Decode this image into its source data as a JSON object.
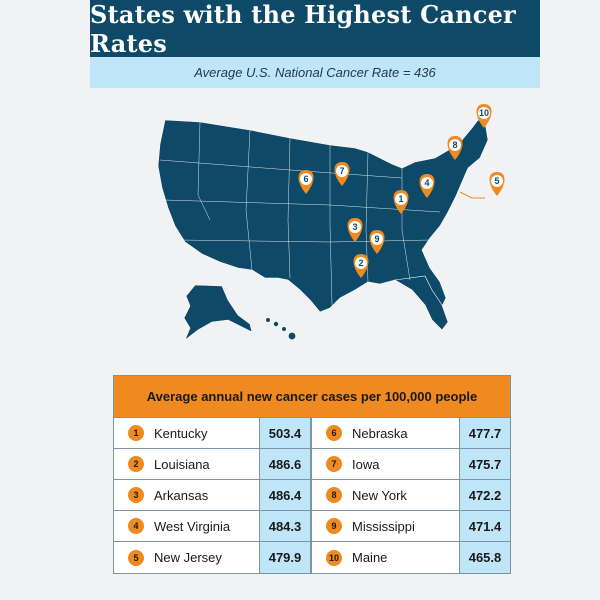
{
  "title": "States with the Highest Cancer Rates",
  "subtitle": "Average U.S. National Cancer Rate = 436",
  "table": {
    "header": "Average annual new cancer cases per 100,000 people",
    "left": [
      {
        "rank": "1",
        "state": "Kentucky",
        "value": "503.4"
      },
      {
        "rank": "2",
        "state": "Louisiana",
        "value": "486.6"
      },
      {
        "rank": "3",
        "state": "Arkansas",
        "value": "486.4"
      },
      {
        "rank": "4",
        "state": "West Virginia",
        "value": "484.3"
      },
      {
        "rank": "5",
        "state": "New Jersey",
        "value": "479.9"
      }
    ],
    "right": [
      {
        "rank": "6",
        "state": "Nebraska",
        "value": "477.7"
      },
      {
        "rank": "7",
        "state": "Iowa",
        "value": "475.7"
      },
      {
        "rank": "8",
        "state": "New York",
        "value": "472.2"
      },
      {
        "rank": "9",
        "state": "Mississippi",
        "value": "471.4"
      },
      {
        "rank": "10",
        "state": "Maine",
        "value": "465.8"
      }
    ]
  },
  "map": {
    "pins": [
      "1",
      "2",
      "3",
      "4",
      "5",
      "6",
      "7",
      "8",
      "9",
      "10"
    ]
  },
  "colors": {
    "navy": "#0e4a68",
    "light_blue": "#bfe6f8",
    "orange": "#ee8a1f"
  }
}
